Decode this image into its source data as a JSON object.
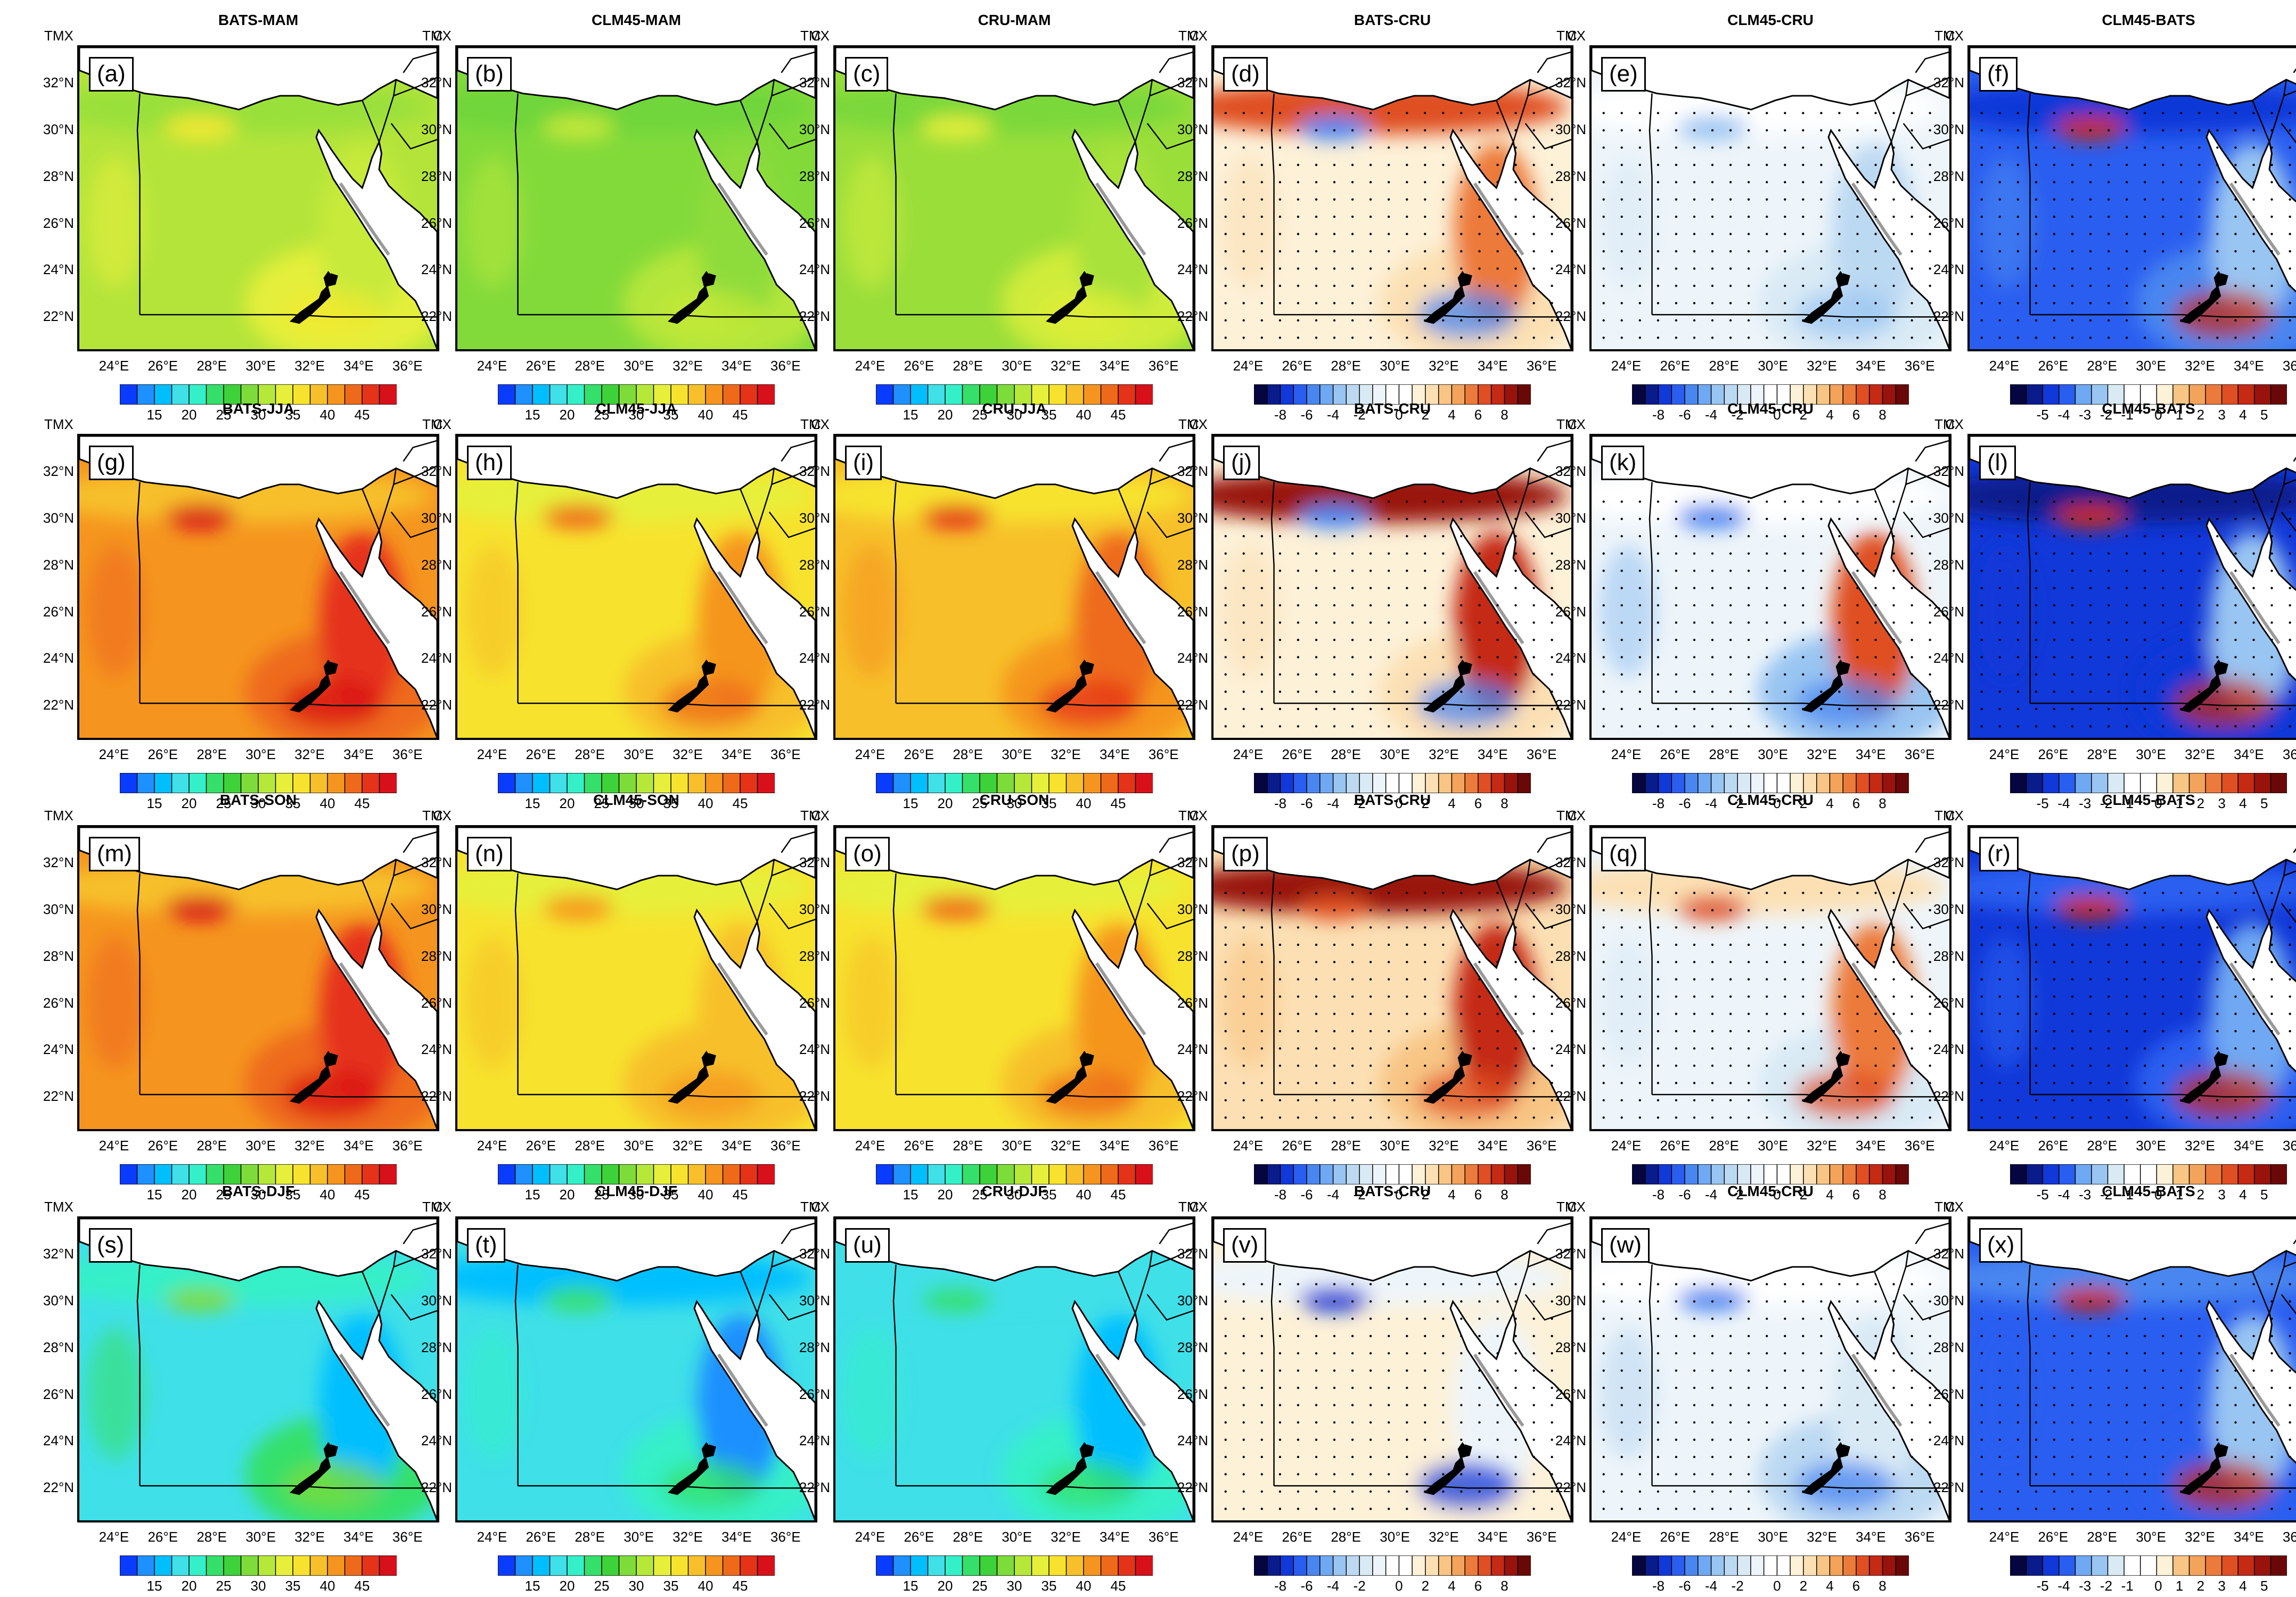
{
  "figure": {
    "units_left": "TMX",
    "units_right": "C",
    "lat_labels": [
      "32°N",
      "30°N",
      "28°N",
      "26°N",
      "24°N",
      "22°N"
    ],
    "lat_values": [
      32,
      30,
      28,
      26,
      24,
      22
    ],
    "lon_labels": [
      "24°E",
      "26°E",
      "28°E",
      "30°E",
      "32°E",
      "34°E",
      "36°E"
    ],
    "lon_values": [
      24,
      26,
      28,
      30,
      32,
      34,
      36
    ],
    "map_extent": {
      "lon_min": 22.5,
      "lon_max": 37.3,
      "lat_min": 20.5,
      "lat_max": 33.6
    }
  },
  "colorbars": {
    "temp": {
      "labels": [
        "15",
        "20",
        "25",
        "30",
        "35",
        "40",
        "45"
      ],
      "colors": [
        "#0a3cff",
        "#1e90ff",
        "#00bfff",
        "#3fe0e8",
        "#34f0c8",
        "#35e06a",
        "#3ed23a",
        "#7ddc3a",
        "#b6e83a",
        "#e6f03a",
        "#f7e32e",
        "#f7c02a",
        "#f5951f",
        "#ee6a1a",
        "#e5331a",
        "#d8101a"
      ]
    },
    "diff8": {
      "labels": [
        "-8",
        "-6",
        "-4",
        "-2",
        "0",
        "2",
        "4",
        "6",
        "8"
      ],
      "colors": [
        "#050540",
        "#0a1c8c",
        "#1138d8",
        "#2a5ef0",
        "#4a86f0",
        "#6fa8f3",
        "#99c5f2",
        "#bcd9f2",
        "#d9eaf5",
        "#eef5fa",
        "#ffffff",
        "#ffffff",
        "#fdf1d8",
        "#fce0b4",
        "#f8c584",
        "#f4a35a",
        "#ec7a3a",
        "#df4f23",
        "#c42a14",
        "#99130c",
        "#6a0808"
      ]
    },
    "diff5": {
      "labels": [
        "-5",
        "-4",
        "-3",
        "-2",
        "-1",
        "0",
        "1",
        "2",
        "3",
        "4",
        "5"
      ],
      "colors": [
        "#050540",
        "#0a1c8c",
        "#1138d8",
        "#2a5ef0",
        "#6fa8f3",
        "#99c5f2",
        "#d9eaf5",
        "#ffffff",
        "#ffffff",
        "#fdf1d8",
        "#f8c584",
        "#f4a35a",
        "#ec7a3a",
        "#df4f23",
        "#c42a14",
        "#99130c",
        "#6a0808"
      ]
    }
  },
  "rows": [
    {
      "season": "MAM",
      "panels": [
        {
          "title": "BATS-MAM",
          "label": "(a)",
          "type": "temp",
          "base": "#b4e43a",
          "north": "#9ae03a",
          "south": "#e4ef3a",
          "east": "#c8ea3a",
          "hot": "#f2e832",
          "dots": false
        },
        {
          "title": "CLM45-MAM",
          "label": "(b)",
          "type": "temp",
          "base": "#82da3a",
          "north": "#6fd63a",
          "south": "#b6e63a",
          "east": "#8edc3a",
          "hot": "#c4e83a",
          "dots": false
        },
        {
          "title": "CRU-MAM",
          "label": "(c)",
          "type": "temp",
          "base": "#9ade3a",
          "north": "#7ad83a",
          "south": "#d0ec3a",
          "east": "#a8e23a",
          "hot": "#e2ee3a",
          "dots": false
        },
        {
          "title": "BATS-CRU",
          "label": "(d)",
          "type": "diff8",
          "base": "#fdf1d8",
          "north": "#df4f23",
          "south": "#fce0b4",
          "east": "#ec7a3a",
          "hot": "#4a86f0",
          "dots": true
        },
        {
          "title": "CLM45-CRU",
          "label": "(e)",
          "type": "diff8",
          "base": "#eef5fa",
          "north": "#ffffff",
          "south": "#d9eaf5",
          "east": "#bcd9f2",
          "hot": "#99c5f2",
          "dots": true
        },
        {
          "title": "CLM45-BATS",
          "label": "(f)",
          "type": "diff5",
          "base": "#2a5ef0",
          "north": "#1138d8",
          "south": "#4a86f0",
          "east": "#99c5f2",
          "hot": "#c42a14",
          "dots": true
        }
      ]
    },
    {
      "season": "JJA",
      "panels": [
        {
          "title": "BATS-JJA",
          "label": "(g)",
          "type": "temp",
          "base": "#f5951f",
          "north": "#f7c02a",
          "south": "#ee6a1a",
          "east": "#e5331a",
          "hot": "#d8101a",
          "dots": false
        },
        {
          "title": "CLM45-JJA",
          "label": "(h)",
          "type": "temp",
          "base": "#f7e32e",
          "north": "#e6f03a",
          "south": "#f7c02a",
          "east": "#f5951f",
          "hot": "#ee6a1a",
          "dots": false
        },
        {
          "title": "CRU-JJA",
          "label": "(i)",
          "type": "temp",
          "base": "#f7c02a",
          "north": "#f7e32e",
          "south": "#f5951f",
          "east": "#ee6a1a",
          "hot": "#e5331a",
          "dots": false
        },
        {
          "title": "BATS-CRU",
          "label": "(j)",
          "type": "diff8",
          "base": "#fdf1d8",
          "north": "#99130c",
          "south": "#fce0b4",
          "east": "#c42a14",
          "hot": "#4a86f0",
          "dots": true
        },
        {
          "title": "CLM45-CRU",
          "label": "(k)",
          "type": "diff8",
          "base": "#eef5fa",
          "north": "#ffffff",
          "south": "#99c5f2",
          "east": "#df4f23",
          "hot": "#4a86f0",
          "dots": true
        },
        {
          "title": "CLM45-BATS",
          "label": "(l)",
          "type": "diff5",
          "base": "#1138d8",
          "north": "#0a1c8c",
          "south": "#1138d8",
          "east": "#99c5f2",
          "hot": "#c42a14",
          "dots": true
        }
      ]
    },
    {
      "season": "SON",
      "panels": [
        {
          "title": "BATS-SON",
          "label": "(m)",
          "type": "temp",
          "base": "#f5951f",
          "north": "#f7c02a",
          "south": "#ee6a1a",
          "east": "#e5331a",
          "hot": "#d8101a",
          "dots": false
        },
        {
          "title": "CLM45-SON",
          "label": "(n)",
          "type": "temp",
          "base": "#f7e32e",
          "north": "#e6f03a",
          "south": "#f7c02a",
          "east": "#f7c02a",
          "hot": "#f5951f",
          "dots": false
        },
        {
          "title": "CRU-SON",
          "label": "(o)",
          "type": "temp",
          "base": "#f7e32e",
          "north": "#e6f03a",
          "south": "#f7c02a",
          "east": "#f5951f",
          "hot": "#ee6a1a",
          "dots": false
        },
        {
          "title": "BATS-CRU",
          "label": "(p)",
          "type": "diff8",
          "base": "#fce0b4",
          "north": "#99130c",
          "south": "#f8c584",
          "east": "#c42a14",
          "hot": "#df4f23",
          "dots": true
        },
        {
          "title": "CLM45-CRU",
          "label": "(q)",
          "type": "diff8",
          "base": "#eef5fa",
          "north": "#fce0b4",
          "south": "#d9eaf5",
          "east": "#ec7a3a",
          "hot": "#df4f23",
          "dots": true
        },
        {
          "title": "CLM45-BATS",
          "label": "(r)",
          "type": "diff5",
          "base": "#1138d8",
          "north": "#2a5ef0",
          "south": "#2a5ef0",
          "east": "#6fa8f3",
          "hot": "#c42a14",
          "dots": true
        }
      ]
    },
    {
      "season": "DJF",
      "panels": [
        {
          "title": "BATS-DJF",
          "label": "(s)",
          "type": "temp",
          "base": "#3fe0e8",
          "north": "#34f0c8",
          "south": "#35e06a",
          "east": "#00bfff",
          "hot": "#7ddc3a",
          "dots": false
        },
        {
          "title": "CLM45-DJF",
          "label": "(t)",
          "type": "temp",
          "base": "#3fe0e8",
          "north": "#00bfff",
          "south": "#34f0c8",
          "east": "#1e90ff",
          "hot": "#35e06a",
          "dots": false
        },
        {
          "title": "CRU-DJF",
          "label": "(u)",
          "type": "temp",
          "base": "#3fe0e8",
          "north": "#3fe0e8",
          "south": "#34f0c8",
          "east": "#00bfff",
          "hot": "#35e06a",
          "dots": false
        },
        {
          "title": "BATS-CRU",
          "label": "(v)",
          "type": "diff8",
          "base": "#fdf1d8",
          "north": "#eef5fa",
          "south": "#fdf1d8",
          "east": "#eef5fa",
          "hot": "#1138d8",
          "dots": true
        },
        {
          "title": "CLM45-CRU",
          "label": "(w)",
          "type": "diff8",
          "base": "#eef5fa",
          "north": "#ffffff",
          "south": "#bcd9f2",
          "east": "#d9eaf5",
          "hot": "#4a86f0",
          "dots": true
        },
        {
          "title": "CLM45-BATS",
          "label": "(x)",
          "type": "diff5",
          "base": "#2a5ef0",
          "north": "#4a86f0",
          "south": "#2a5ef0",
          "east": "#99c5f2",
          "hot": "#c42a14",
          "dots": true
        }
      ]
    }
  ]
}
